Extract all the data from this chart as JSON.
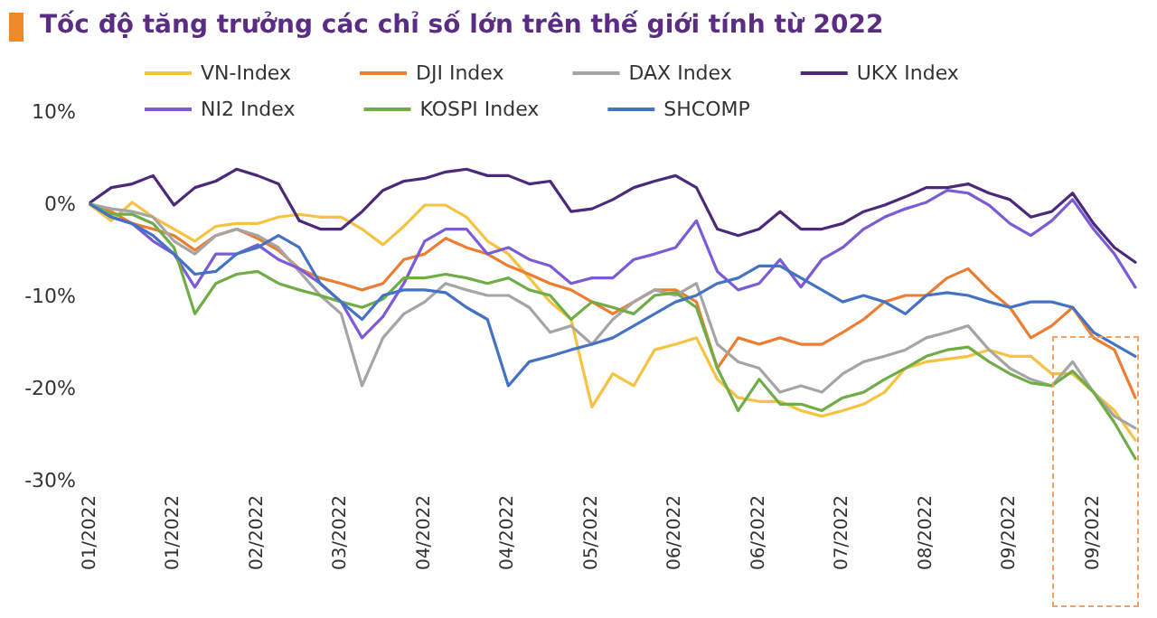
{
  "chart_data": {
    "type": "line",
    "title": "Tốc độ tăng trưởng các chỉ số lớn trên thế giới tính từ 2022",
    "categories": [
      "01/2022",
      null,
      null,
      null,
      "01/2022",
      null,
      null,
      null,
      "02/2022",
      null,
      null,
      null,
      "03/2022",
      null,
      null,
      null,
      "04/2022",
      null,
      null,
      null,
      "04/2022",
      null,
      null,
      null,
      "05/2022",
      null,
      null,
      null,
      "06/2022",
      null,
      null,
      null,
      "06/2022",
      null,
      null,
      null,
      "07/2022",
      null,
      null,
      null,
      "08/2022",
      null,
      null,
      null,
      "09/2022",
      null,
      null,
      null,
      "09/2022",
      null,
      null
    ],
    "series": [
      {
        "name": "VN-Index",
        "color": "#f5c242",
        "values": [
          -0.1,
          -1.8,
          0.2,
          -1.4,
          -2.7,
          -4,
          -2.4,
          -2.1,
          -2.1,
          -1.4,
          -1.1,
          -1.4,
          -1.4,
          -2.7,
          -4.4,
          -2.4,
          -0.1,
          -0.1,
          -1.4,
          -4,
          -5.4,
          -8,
          -10.6,
          -12.5,
          -22,
          -18.4,
          -19.7,
          -15.8,
          -15.2,
          -14.5,
          -19,
          -21,
          -21.4,
          -21.4,
          -22.4,
          -23,
          -22.4,
          -21.7,
          -20.4,
          -17.8,
          -17.1,
          -16.8,
          -16.5,
          -15.8,
          -16.5,
          -16.5,
          -18.4,
          -18.4,
          -20.4,
          -22.4,
          -25.6
        ]
      },
      {
        "name": "DJI Index",
        "color": "#ed7d31",
        "values": [
          0,
          -0.8,
          -2.1,
          -2.7,
          -3.4,
          -5,
          -3.4,
          -2.7,
          -3.7,
          -5,
          -7,
          -8,
          -8.6,
          -9.3,
          -8.6,
          -6,
          -5.4,
          -3.7,
          -4.7,
          -5.4,
          -6.7,
          -7.6,
          -8.6,
          -9.3,
          -10.6,
          -11.9,
          -10.6,
          -9.3,
          -9.3,
          -10.6,
          -17.8,
          -14.5,
          -15.2,
          -14.5,
          -15.2,
          -15.2,
          -13.9,
          -12.5,
          -10.6,
          -9.9,
          -9.9,
          -8,
          -7,
          -9.3,
          -11.2,
          -14.5,
          -13.2,
          -11.2,
          -14.5,
          -15.8,
          -21
        ]
      },
      {
        "name": "DAX Index",
        "color": "#a5a5a5",
        "values": [
          0,
          -0.5,
          -0.8,
          -1.4,
          -4,
          -5.4,
          -3.4,
          -2.7,
          -3.4,
          -4.7,
          -7.3,
          -9.9,
          -11.9,
          -19.7,
          -14.5,
          -11.9,
          -10.6,
          -8.6,
          -9.3,
          -9.9,
          -9.9,
          -11.2,
          -13.9,
          -13.2,
          -15.2,
          -12.5,
          -10.6,
          -9.3,
          -9.9,
          -8.6,
          -15.2,
          -17.1,
          -17.8,
          -20.4,
          -19.7,
          -20.4,
          -18.4,
          -17.1,
          -16.5,
          -15.8,
          -14.5,
          -13.9,
          -13.2,
          -15.8,
          -17.8,
          -19,
          -19.7,
          -17.1,
          -20.4,
          -23,
          -24.3
        ]
      },
      {
        "name": "UKX Index",
        "color": "#4b2a7b",
        "values": [
          0.2,
          1.8,
          2.2,
          3.1,
          -0.1,
          1.8,
          2.5,
          3.8,
          3.1,
          2.2,
          -1.8,
          -2.7,
          -2.7,
          -0.8,
          1.5,
          2.5,
          2.8,
          3.5,
          3.8,
          3.1,
          3.1,
          2.2,
          2.5,
          -0.8,
          -0.5,
          0.5,
          1.8,
          2.5,
          3.1,
          1.8,
          -2.7,
          -3.4,
          -2.7,
          -0.8,
          -2.7,
          -2.7,
          -2.1,
          -0.8,
          -0.1,
          0.8,
          1.8,
          1.8,
          2.2,
          1.2,
          0.5,
          -1.4,
          -0.8,
          1.2,
          -2.1,
          -4.7,
          -6.3
        ]
      },
      {
        "name": "NI2 Index",
        "color": "#7b5cd6",
        "values": [
          0,
          -1.4,
          -2.1,
          -4,
          -5.4,
          -9,
          -5.4,
          -5.4,
          -4.4,
          -6,
          -7,
          -8.6,
          -10.6,
          -14.5,
          -12.2,
          -8.6,
          -4,
          -2.7,
          -2.7,
          -5.4,
          -4.7,
          -6,
          -6.7,
          -8.6,
          -8,
          -8,
          -6,
          -5.4,
          -4.7,
          -1.8,
          -7.3,
          -9.3,
          -8.6,
          -6,
          -9,
          -6,
          -4.7,
          -2.7,
          -1.4,
          -0.5,
          0.2,
          1.5,
          1.2,
          -0.1,
          -2.1,
          -3.4,
          -1.8,
          0.5,
          -2.7,
          -5.4,
          -9
        ]
      },
      {
        "name": "KOSPI Index",
        "color": "#70ad47",
        "values": [
          0,
          -1.1,
          -1.1,
          -2.1,
          -4.7,
          -11.9,
          -8.6,
          -7.6,
          -7.3,
          -8.6,
          -9.3,
          -9.9,
          -10.6,
          -11.2,
          -10.3,
          -8,
          -8,
          -7.6,
          -8,
          -8.6,
          -8,
          -9.3,
          -9.9,
          -12.5,
          -10.6,
          -11.2,
          -11.9,
          -9.9,
          -9.6,
          -11.2,
          -17.8,
          -22.4,
          -19,
          -21.7,
          -21.7,
          -22.4,
          -21,
          -20.4,
          -19,
          -17.8,
          -16.5,
          -15.8,
          -15.5,
          -17.1,
          -18.4,
          -19.4,
          -19.7,
          -18.1,
          -20.4,
          -23.7,
          -27.6
        ]
      },
      {
        "name": "SHCOMP",
        "color": "#4472c4",
        "values": [
          0,
          -1.4,
          -2.1,
          -3.4,
          -5.4,
          -7.6,
          -7.3,
          -5.4,
          -4.7,
          -3.4,
          -4.7,
          -8.6,
          -10.6,
          -12.5,
          -9.9,
          -9.3,
          -9.3,
          -9.6,
          -11.2,
          -12.5,
          -19.7,
          -17.1,
          -16.5,
          -15.8,
          -15.2,
          -14.5,
          -13.2,
          -11.9,
          -10.6,
          -9.9,
          -8.6,
          -8,
          -6.7,
          -6.7,
          -8,
          -9.3,
          -10.6,
          -9.9,
          -10.6,
          -11.9,
          -9.9,
          -9.6,
          -9.9,
          -10.6,
          -11.2,
          -10.6,
          -10.6,
          -11.2,
          -13.9,
          -15.2,
          -16.5
        ]
      }
    ],
    "ylim": [
      -30,
      10
    ],
    "yticks": [
      {
        "value": -30,
        "label": "-30%"
      },
      {
        "value": -20,
        "label": "-20%"
      },
      {
        "value": -10,
        "label": "-10%"
      },
      {
        "value": 0,
        "label": "0%"
      },
      {
        "value": 10,
        "label": "10%"
      }
    ],
    "grid": false,
    "legend": "top",
    "marker": "none",
    "line_style": "solid"
  }
}
